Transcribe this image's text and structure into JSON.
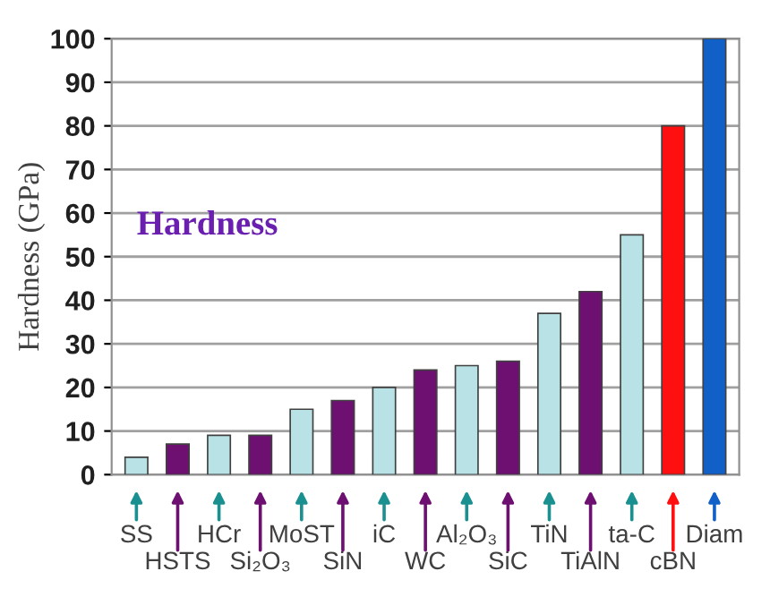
{
  "chart_data": {
    "type": "bar",
    "title": "Hardness",
    "ylabel": "Hardness (GPa)",
    "categories": [
      "SS",
      "HSTS",
      "HCr",
      "Si₂O₃",
      "MoST",
      "SiN",
      "iC",
      "WC",
      "Al₂O₃",
      "SiC",
      "TiN",
      "TiAlN",
      "ta-C",
      "cBN",
      "Diam"
    ],
    "values": [
      4,
      7,
      9,
      9,
      15,
      17,
      20,
      24,
      25,
      26,
      37,
      42,
      55,
      80,
      100
    ],
    "colors": [
      "#b8e2e6",
      "#6e0f72",
      "#b8e2e6",
      "#6e0f72",
      "#b8e2e6",
      "#6e0f72",
      "#b8e2e6",
      "#6e0f72",
      "#b8e2e6",
      "#6e0f72",
      "#b8e2e6",
      "#6e0f72",
      "#b8e2e6",
      "#ff1010",
      "#1060c8"
    ],
    "ylim": [
      0,
      100
    ],
    "yticks": [
      0,
      10,
      20,
      30,
      40,
      50,
      60,
      70,
      80,
      90,
      100
    ],
    "grid": "y"
  }
}
